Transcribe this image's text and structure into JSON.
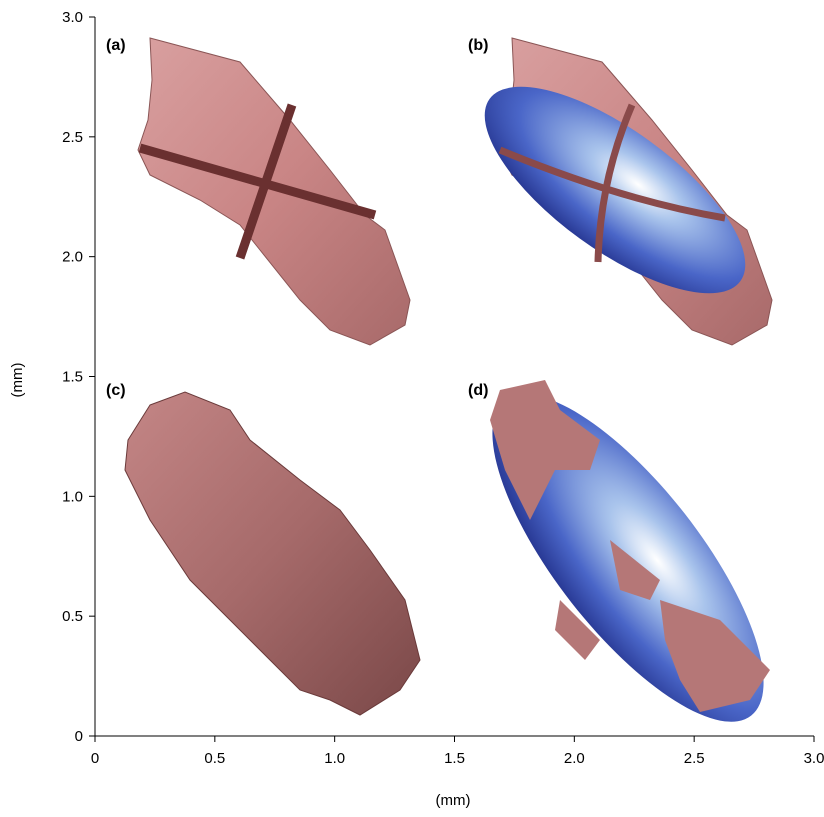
{
  "chart_data": {
    "type": "image",
    "panels": [
      "(a)",
      "(b)",
      "(c)",
      "(d)"
    ],
    "xlabel": "(mm)",
    "ylabel": "(mm)",
    "xlim": [
      0,
      3
    ],
    "ylim": [
      0,
      3
    ],
    "xticks": [
      0,
      0.5,
      {
        "value": 1,
        "label": "1.0"
      },
      1.5,
      {
        "value": 2,
        "label": "2.0"
      },
      2.5,
      {
        "value": 3,
        "label": "3.0"
      }
    ],
    "yticks": [
      0,
      0.5,
      {
        "value": 1,
        "label": "1.0"
      },
      1.5,
      {
        "value": 2,
        "label": "2.0"
      },
      2.5,
      {
        "value": 3,
        "label": "3.0"
      }
    ]
  }
}
